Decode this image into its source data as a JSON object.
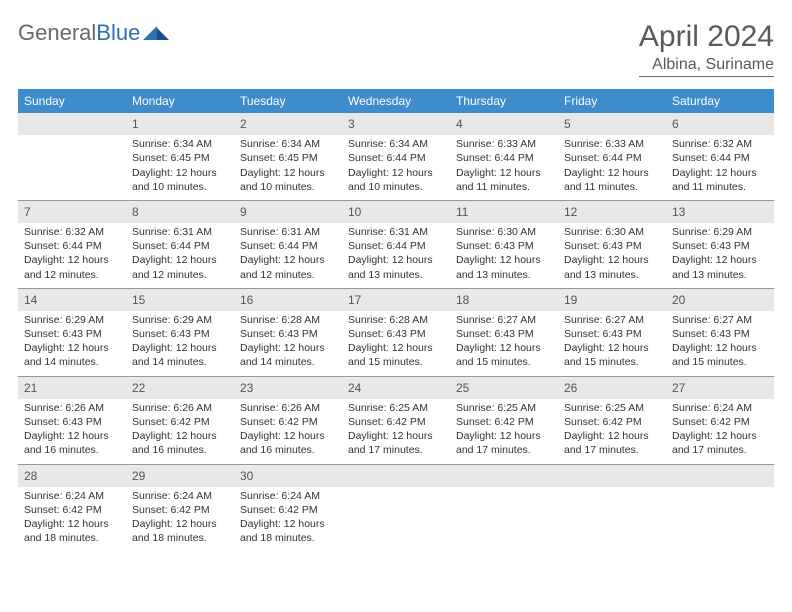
{
  "brand": {
    "part1": "General",
    "part2": "Blue"
  },
  "title": "April 2024",
  "location": "Albina, Suriname",
  "colors": {
    "header_bg": "#3e8ccc",
    "header_fg": "#ffffff",
    "daynum_bg": "#e8e8e8",
    "text": "#333333",
    "brand_gray": "#6a6a6a",
    "brand_blue": "#2f6fb0"
  },
  "dow": [
    "Sunday",
    "Monday",
    "Tuesday",
    "Wednesday",
    "Thursday",
    "Friday",
    "Saturday"
  ],
  "weeks": [
    [
      {
        "n": "",
        "lines": []
      },
      {
        "n": "1",
        "lines": [
          "Sunrise: 6:34 AM",
          "Sunset: 6:45 PM",
          "Daylight: 12 hours and 10 minutes."
        ]
      },
      {
        "n": "2",
        "lines": [
          "Sunrise: 6:34 AM",
          "Sunset: 6:45 PM",
          "Daylight: 12 hours and 10 minutes."
        ]
      },
      {
        "n": "3",
        "lines": [
          "Sunrise: 6:34 AM",
          "Sunset: 6:44 PM",
          "Daylight: 12 hours and 10 minutes."
        ]
      },
      {
        "n": "4",
        "lines": [
          "Sunrise: 6:33 AM",
          "Sunset: 6:44 PM",
          "Daylight: 12 hours and 11 minutes."
        ]
      },
      {
        "n": "5",
        "lines": [
          "Sunrise: 6:33 AM",
          "Sunset: 6:44 PM",
          "Daylight: 12 hours and 11 minutes."
        ]
      },
      {
        "n": "6",
        "lines": [
          "Sunrise: 6:32 AM",
          "Sunset: 6:44 PM",
          "Daylight: 12 hours and 11 minutes."
        ]
      }
    ],
    [
      {
        "n": "7",
        "lines": [
          "Sunrise: 6:32 AM",
          "Sunset: 6:44 PM",
          "Daylight: 12 hours and 12 minutes."
        ]
      },
      {
        "n": "8",
        "lines": [
          "Sunrise: 6:31 AM",
          "Sunset: 6:44 PM",
          "Daylight: 12 hours and 12 minutes."
        ]
      },
      {
        "n": "9",
        "lines": [
          "Sunrise: 6:31 AM",
          "Sunset: 6:44 PM",
          "Daylight: 12 hours and 12 minutes."
        ]
      },
      {
        "n": "10",
        "lines": [
          "Sunrise: 6:31 AM",
          "Sunset: 6:44 PM",
          "Daylight: 12 hours and 13 minutes."
        ]
      },
      {
        "n": "11",
        "lines": [
          "Sunrise: 6:30 AM",
          "Sunset: 6:43 PM",
          "Daylight: 12 hours and 13 minutes."
        ]
      },
      {
        "n": "12",
        "lines": [
          "Sunrise: 6:30 AM",
          "Sunset: 6:43 PM",
          "Daylight: 12 hours and 13 minutes."
        ]
      },
      {
        "n": "13",
        "lines": [
          "Sunrise: 6:29 AM",
          "Sunset: 6:43 PM",
          "Daylight: 12 hours and 13 minutes."
        ]
      }
    ],
    [
      {
        "n": "14",
        "lines": [
          "Sunrise: 6:29 AM",
          "Sunset: 6:43 PM",
          "Daylight: 12 hours and 14 minutes."
        ]
      },
      {
        "n": "15",
        "lines": [
          "Sunrise: 6:29 AM",
          "Sunset: 6:43 PM",
          "Daylight: 12 hours and 14 minutes."
        ]
      },
      {
        "n": "16",
        "lines": [
          "Sunrise: 6:28 AM",
          "Sunset: 6:43 PM",
          "Daylight: 12 hours and 14 minutes."
        ]
      },
      {
        "n": "17",
        "lines": [
          "Sunrise: 6:28 AM",
          "Sunset: 6:43 PM",
          "Daylight: 12 hours and 15 minutes."
        ]
      },
      {
        "n": "18",
        "lines": [
          "Sunrise: 6:27 AM",
          "Sunset: 6:43 PM",
          "Daylight: 12 hours and 15 minutes."
        ]
      },
      {
        "n": "19",
        "lines": [
          "Sunrise: 6:27 AM",
          "Sunset: 6:43 PM",
          "Daylight: 12 hours and 15 minutes."
        ]
      },
      {
        "n": "20",
        "lines": [
          "Sunrise: 6:27 AM",
          "Sunset: 6:43 PM",
          "Daylight: 12 hours and 15 minutes."
        ]
      }
    ],
    [
      {
        "n": "21",
        "lines": [
          "Sunrise: 6:26 AM",
          "Sunset: 6:43 PM",
          "Daylight: 12 hours and 16 minutes."
        ]
      },
      {
        "n": "22",
        "lines": [
          "Sunrise: 6:26 AM",
          "Sunset: 6:42 PM",
          "Daylight: 12 hours and 16 minutes."
        ]
      },
      {
        "n": "23",
        "lines": [
          "Sunrise: 6:26 AM",
          "Sunset: 6:42 PM",
          "Daylight: 12 hours and 16 minutes."
        ]
      },
      {
        "n": "24",
        "lines": [
          "Sunrise: 6:25 AM",
          "Sunset: 6:42 PM",
          "Daylight: 12 hours and 17 minutes."
        ]
      },
      {
        "n": "25",
        "lines": [
          "Sunrise: 6:25 AM",
          "Sunset: 6:42 PM",
          "Daylight: 12 hours and 17 minutes."
        ]
      },
      {
        "n": "26",
        "lines": [
          "Sunrise: 6:25 AM",
          "Sunset: 6:42 PM",
          "Daylight: 12 hours and 17 minutes."
        ]
      },
      {
        "n": "27",
        "lines": [
          "Sunrise: 6:24 AM",
          "Sunset: 6:42 PM",
          "Daylight: 12 hours and 17 minutes."
        ]
      }
    ],
    [
      {
        "n": "28",
        "lines": [
          "Sunrise: 6:24 AM",
          "Sunset: 6:42 PM",
          "Daylight: 12 hours and 18 minutes."
        ]
      },
      {
        "n": "29",
        "lines": [
          "Sunrise: 6:24 AM",
          "Sunset: 6:42 PM",
          "Daylight: 12 hours and 18 minutes."
        ]
      },
      {
        "n": "30",
        "lines": [
          "Sunrise: 6:24 AM",
          "Sunset: 6:42 PM",
          "Daylight: 12 hours and 18 minutes."
        ]
      },
      {
        "n": "",
        "lines": []
      },
      {
        "n": "",
        "lines": []
      },
      {
        "n": "",
        "lines": []
      },
      {
        "n": "",
        "lines": []
      }
    ]
  ]
}
